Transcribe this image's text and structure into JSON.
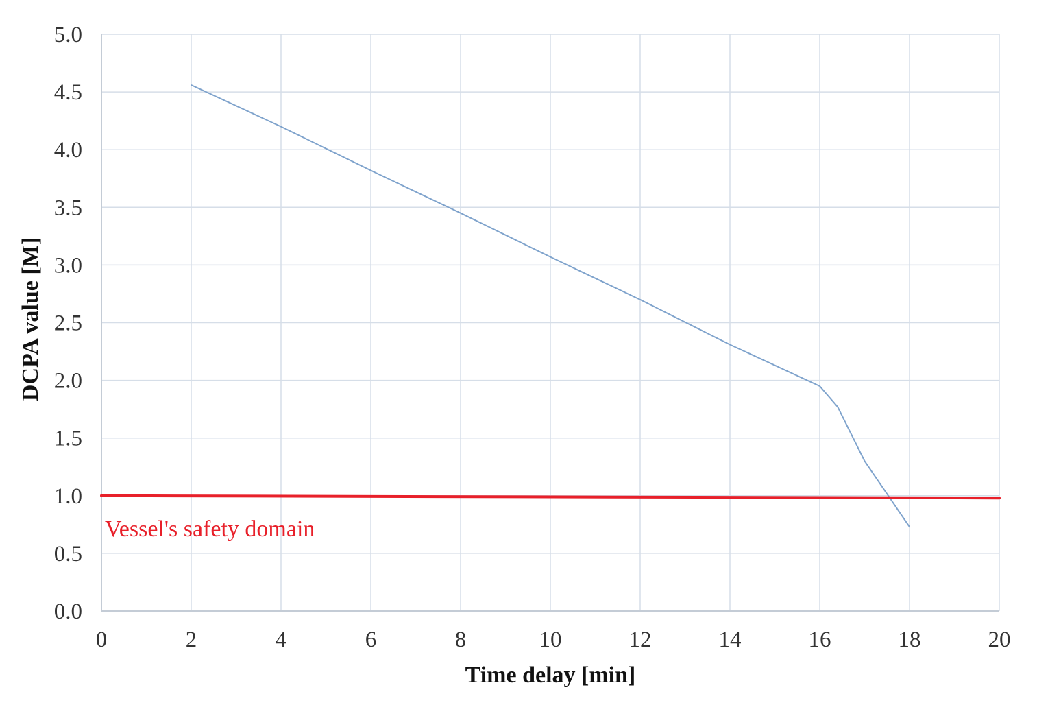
{
  "chart_data": {
    "type": "line",
    "title": "",
    "xlabel": "Time delay [min]",
    "ylabel": "DCPA value [M]",
    "xlim": [
      0,
      20
    ],
    "ylim": [
      0,
      5
    ],
    "x_ticks": [
      0,
      2,
      4,
      6,
      8,
      10,
      12,
      14,
      16,
      18,
      20
    ],
    "x_tick_labels": [
      "0",
      "2",
      "4",
      "6",
      "8",
      "10",
      "12",
      "14",
      "16",
      "18",
      "20"
    ],
    "y_ticks": [
      0,
      0.5,
      1,
      1.5,
      2,
      2.5,
      3,
      3.5,
      4,
      4.5,
      5
    ],
    "y_tick_labels": [
      "0.0",
      "0.5",
      "1.0",
      "1.5",
      "2.0",
      "2.5",
      "3.0",
      "3.5",
      "4.0",
      "4.5",
      "5.0"
    ],
    "grid": true,
    "legend": "none",
    "series": [
      {
        "color": "#7fa3cc",
        "x": [
          2,
          4,
          6,
          8,
          10,
          12,
          14,
          15,
          16,
          16.4,
          17,
          18
        ],
        "y": [
          4.56,
          4.2,
          3.82,
          3.45,
          3.07,
          2.7,
          2.31,
          2.13,
          1.95,
          1.77,
          1.3,
          0.73
        ]
      },
      {
        "color": "#e8202a",
        "x": [
          0,
          20
        ],
        "y": [
          1.0,
          0.98
        ]
      }
    ],
    "annotations": [
      {
        "text": "Vessel's safety domain",
        "color": "#e8202a"
      }
    ]
  }
}
